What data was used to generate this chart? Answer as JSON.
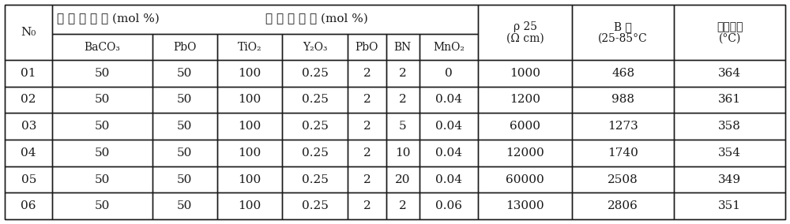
{
  "header1_text": "原 材 料 配 比 (mol %)",
  "N0_label": "N₀",
  "rho_line1": "ρ 25",
  "rho_line2": "(Ω cm)",
  "B_line1": "B 値",
  "B_line2": "(25-85°C",
  "curie_line1": "居里温度",
  "curie_line2": "(°C)",
  "sub_headers": [
    "BaCO₃",
    "PbO",
    "TiO₂",
    "Y₂O₃",
    "PbO",
    "BN",
    "MnO₂"
  ],
  "rows": [
    [
      "01",
      "50",
      "50",
      "100",
      "0.25",
      "2",
      "2",
      "0",
      "1000",
      "468",
      "364"
    ],
    [
      "02",
      "50",
      "50",
      "100",
      "0.25",
      "2",
      "2",
      "0.04",
      "1200",
      "988",
      "361"
    ],
    [
      "03",
      "50",
      "50",
      "100",
      "0.25",
      "2",
      "5",
      "0.04",
      "6000",
      "1273",
      "358"
    ],
    [
      "04",
      "50",
      "50",
      "100",
      "0.25",
      "2",
      "10",
      "0.04",
      "12000",
      "1740",
      "354"
    ],
    [
      "05",
      "50",
      "50",
      "100",
      "0.25",
      "2",
      "20",
      "0.04",
      "60000",
      "2508",
      "349"
    ],
    [
      "06",
      "50",
      "50",
      "100",
      "0.25",
      "2",
      "2",
      "0.06",
      "13000",
      "2806",
      "351"
    ]
  ],
  "bg": "#ffffff",
  "fg": "#1a1a1a",
  "lw": 1.0
}
